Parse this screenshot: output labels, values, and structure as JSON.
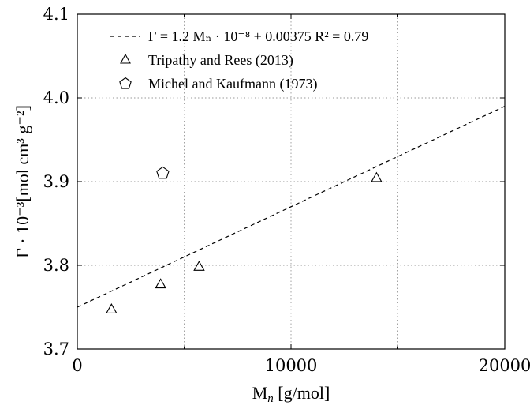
{
  "chart_data": {
    "type": "scatter",
    "xlabel": "M",
    "xlabel_sub": "n",
    "xlabel_unit": " [g/mol]",
    "ylabel": "Γ · 10⁻³[mol cm³ g⁻²]",
    "xlim": [
      0,
      20000
    ],
    "ylim": [
      3.7,
      4.1
    ],
    "xticks": [
      0,
      10000,
      20000
    ],
    "xtick_labels": [
      "0",
      "10000",
      "20000"
    ],
    "yticks": [
      3.7,
      3.8,
      3.9,
      4.0,
      4.1
    ],
    "ytick_labels": [
      "3.7",
      "3.8",
      "3.9",
      "4.0",
      "4.1"
    ],
    "grid": true,
    "legend_position": "top",
    "series": [
      {
        "name": "Γ = 1.2 Mₙ · 10⁻⁸ + 0.00375    R² = 0.79",
        "kind": "line",
        "style": "dashed",
        "slope": 1.2e-05,
        "intercept": 3.75,
        "x": [
          0,
          20000
        ],
        "y": [
          3.75,
          3.99
        ]
      },
      {
        "name": "Tripathy and Rees (2013)",
        "kind": "scatter",
        "marker": "triangle",
        "x": [
          1600,
          3900,
          5700,
          14000
        ],
        "y": [
          3.747,
          3.777,
          3.798,
          3.904
        ]
      },
      {
        "name": "Michel and Kaufmann (1973)",
        "kind": "scatter",
        "marker": "pentagon",
        "x": [
          4000
        ],
        "y": [
          3.91
        ]
      }
    ]
  }
}
